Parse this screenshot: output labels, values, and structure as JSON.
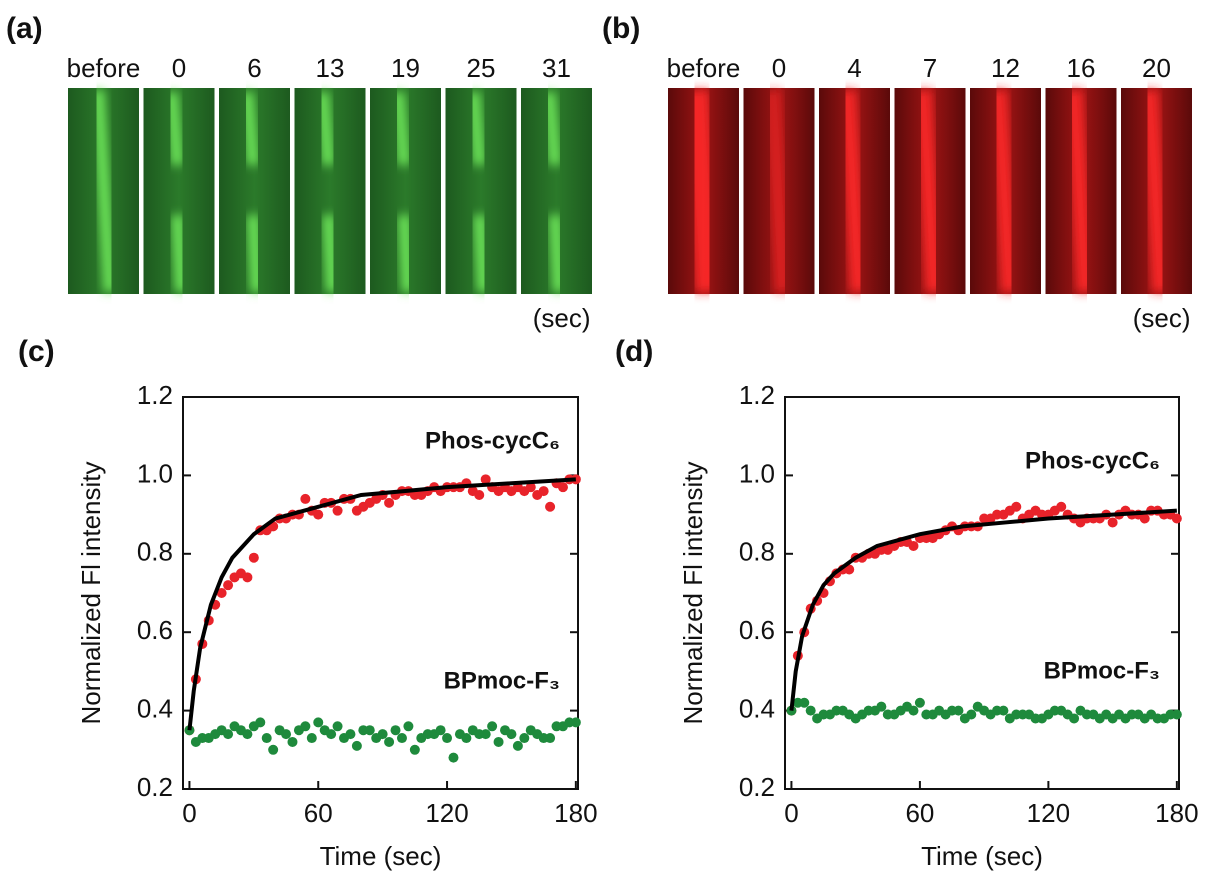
{
  "kymographs": [
    {
      "panel_label": "(a)",
      "frame_labels": [
        "before",
        "0",
        "6",
        "13",
        "19",
        "25",
        "31"
      ],
      "unit": "(sec)"
    },
    {
      "panel_label": "(b)",
      "frame_labels": [
        "before",
        "0",
        "4",
        "7",
        "12",
        "16",
        "20"
      ],
      "unit": "(sec)"
    }
  ],
  "chart_data": [
    {
      "type": "scatter",
      "panel_label": "(c)",
      "xlabel": "Time (sec)",
      "ylabel": "Normalized Fl intensity",
      "xlim": [
        -3,
        181
      ],
      "ylim": [
        0.2,
        1.2
      ],
      "xticks": [
        0,
        60,
        120,
        180
      ],
      "yticks": [
        0.2,
        0.4,
        0.6,
        0.8,
        {
          "value": 1,
          "label": "1.0"
        },
        1.2
      ],
      "series": [
        {
          "name": "Phos-cycC₆",
          "color": "#e8232a",
          "x": [
            0,
            3,
            6,
            9,
            12,
            15,
            18,
            21,
            24,
            27,
            30,
            33,
            36,
            39,
            42,
            45,
            48,
            51,
            54,
            57,
            60,
            63,
            66,
            69,
            72,
            75,
            78,
            81,
            84,
            87,
            90,
            93,
            96,
            99,
            102,
            105,
            108,
            111,
            114,
            117,
            120,
            123,
            126,
            129,
            132,
            135,
            138,
            141,
            144,
            147,
            150,
            153,
            156,
            159,
            162,
            165,
            168,
            171,
            174,
            177,
            180
          ],
          "values": [
            0.35,
            0.48,
            0.57,
            0.63,
            0.67,
            0.7,
            0.72,
            0.74,
            0.75,
            0.74,
            0.79,
            0.86,
            0.86,
            0.87,
            0.89,
            0.89,
            0.9,
            0.9,
            0.94,
            0.91,
            0.9,
            0.93,
            0.93,
            0.91,
            0.94,
            0.94,
            0.91,
            0.92,
            0.93,
            0.94,
            0.95,
            0.93,
            0.95,
            0.96,
            0.96,
            0.95,
            0.95,
            0.96,
            0.97,
            0.96,
            0.97,
            0.97,
            0.97,
            0.98,
            0.96,
            0.95,
            0.99,
            0.97,
            0.96,
            0.97,
            0.96,
            0.97,
            0.96,
            0.97,
            0.95,
            0.96,
            0.92,
            0.98,
            0.97,
            0.99,
            0.99
          ]
        },
        {
          "name": "BPmoc-F₃",
          "color": "#1e8a3c",
          "x": [
            0,
            3,
            6,
            9,
            12,
            15,
            18,
            21,
            24,
            27,
            30,
            33,
            36,
            39,
            42,
            45,
            48,
            51,
            54,
            57,
            60,
            63,
            66,
            69,
            72,
            75,
            78,
            81,
            84,
            87,
            90,
            93,
            96,
            99,
            102,
            105,
            108,
            111,
            114,
            117,
            120,
            123,
            126,
            129,
            132,
            135,
            138,
            141,
            144,
            147,
            150,
            153,
            156,
            159,
            162,
            165,
            168,
            171,
            174,
            177,
            180
          ],
          "values": [
            0.35,
            0.32,
            0.33,
            0.33,
            0.34,
            0.35,
            0.34,
            0.36,
            0.35,
            0.34,
            0.36,
            0.37,
            0.33,
            0.3,
            0.35,
            0.34,
            0.32,
            0.35,
            0.36,
            0.33,
            0.37,
            0.35,
            0.34,
            0.36,
            0.33,
            0.34,
            0.31,
            0.35,
            0.35,
            0.33,
            0.34,
            0.32,
            0.35,
            0.33,
            0.36,
            0.3,
            0.33,
            0.34,
            0.34,
            0.35,
            0.33,
            0.28,
            0.34,
            0.33,
            0.35,
            0.34,
            0.34,
            0.36,
            0.32,
            0.35,
            0.34,
            0.31,
            0.33,
            0.35,
            0.34,
            0.33,
            0.33,
            0.36,
            0.36,
            0.37,
            0.37
          ]
        },
        {
          "type": "line",
          "color": "#000000",
          "x": [
            0,
            2,
            5,
            10,
            15,
            20,
            30,
            40,
            60,
            80,
            100,
            120,
            150,
            180
          ],
          "values": [
            0.35,
            0.45,
            0.56,
            0.67,
            0.74,
            0.79,
            0.85,
            0.89,
            0.92,
            0.95,
            0.96,
            0.97,
            0.98,
            0.99
          ]
        }
      ]
    },
    {
      "type": "scatter",
      "panel_label": "(d)",
      "xlabel": "Time (sec)",
      "ylabel": "Normalized Fl intensity",
      "xlim": [
        -3,
        181
      ],
      "ylim": [
        0.2,
        1.2
      ],
      "xticks": [
        0,
        60,
        120,
        180
      ],
      "yticks": [
        0.2,
        0.4,
        0.6,
        0.8,
        {
          "value": 1,
          "label": "1.0"
        },
        1.2
      ],
      "series": [
        {
          "name": "Phos-cycC₆",
          "color": "#e8232a",
          "x": [
            0,
            3,
            6,
            9,
            12,
            15,
            18,
            21,
            24,
            27,
            30,
            33,
            36,
            39,
            42,
            45,
            48,
            51,
            54,
            57,
            60,
            63,
            66,
            69,
            72,
            75,
            78,
            81,
            84,
            87,
            90,
            93,
            96,
            99,
            102,
            105,
            108,
            111,
            114,
            117,
            120,
            123,
            126,
            129,
            132,
            135,
            138,
            141,
            144,
            147,
            150,
            153,
            156,
            159,
            162,
            165,
            168,
            171,
            174,
            177,
            180
          ],
          "values": [
            0.4,
            0.54,
            0.6,
            0.66,
            0.68,
            0.7,
            0.73,
            0.75,
            0.76,
            0.76,
            0.79,
            0.79,
            0.8,
            0.8,
            0.81,
            0.81,
            0.82,
            0.83,
            0.83,
            0.82,
            0.84,
            0.84,
            0.84,
            0.85,
            0.86,
            0.87,
            0.86,
            0.87,
            0.87,
            0.87,
            0.89,
            0.89,
            0.9,
            0.9,
            0.91,
            0.92,
            0.89,
            0.9,
            0.91,
            0.9,
            0.9,
            0.91,
            0.92,
            0.9,
            0.89,
            0.88,
            0.89,
            0.89,
            0.89,
            0.9,
            0.88,
            0.9,
            0.91,
            0.9,
            0.9,
            0.89,
            0.91,
            0.91,
            0.9,
            0.9,
            0.89
          ]
        },
        {
          "name": "BPmoc-F₃",
          "color": "#1e8a3c",
          "x": [
            0,
            3,
            6,
            9,
            12,
            15,
            18,
            21,
            24,
            27,
            30,
            33,
            36,
            39,
            42,
            45,
            48,
            51,
            54,
            57,
            60,
            63,
            66,
            69,
            72,
            75,
            78,
            81,
            84,
            87,
            90,
            93,
            96,
            99,
            102,
            105,
            108,
            111,
            114,
            117,
            120,
            123,
            126,
            129,
            132,
            135,
            138,
            141,
            144,
            147,
            150,
            153,
            156,
            159,
            162,
            165,
            168,
            171,
            174,
            177,
            180
          ],
          "values": [
            0.4,
            0.42,
            0.42,
            0.4,
            0.38,
            0.39,
            0.39,
            0.4,
            0.4,
            0.39,
            0.38,
            0.39,
            0.4,
            0.4,
            0.41,
            0.39,
            0.39,
            0.4,
            0.41,
            0.4,
            0.42,
            0.39,
            0.39,
            0.4,
            0.39,
            0.4,
            0.4,
            0.38,
            0.39,
            0.41,
            0.4,
            0.39,
            0.4,
            0.4,
            0.38,
            0.39,
            0.39,
            0.39,
            0.38,
            0.38,
            0.39,
            0.4,
            0.4,
            0.39,
            0.38,
            0.4,
            0.39,
            0.39,
            0.38,
            0.39,
            0.38,
            0.39,
            0.38,
            0.39,
            0.39,
            0.38,
            0.39,
            0.38,
            0.38,
            0.39,
            0.39
          ]
        },
        {
          "type": "line",
          "color": "#000000",
          "x": [
            0,
            2,
            5,
            10,
            15,
            20,
            30,
            40,
            60,
            80,
            100,
            120,
            150,
            180
          ],
          "values": [
            0.4,
            0.5,
            0.59,
            0.67,
            0.72,
            0.75,
            0.79,
            0.82,
            0.85,
            0.87,
            0.88,
            0.89,
            0.9,
            0.91
          ]
        }
      ]
    }
  ]
}
